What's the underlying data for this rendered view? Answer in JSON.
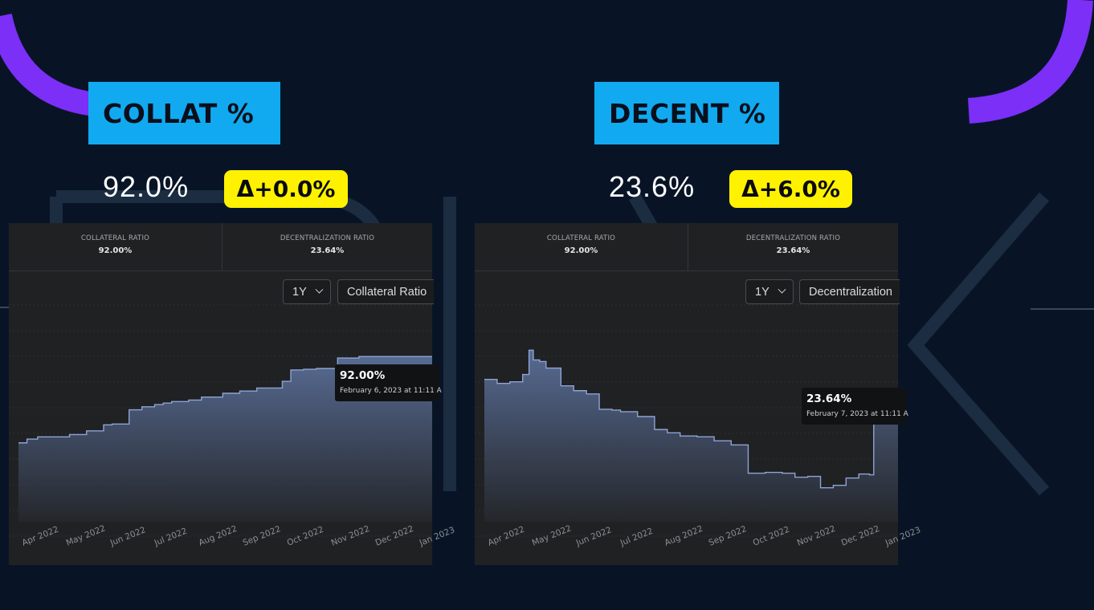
{
  "left": {
    "label": "COLLAT %",
    "value": "92.0%",
    "delta": "Δ+0.0%",
    "stats": [
      {
        "title": "COLLATERAL RATIO",
        "value": "92.00%"
      },
      {
        "title": "DECENTRALIZATION RATIO",
        "value": "23.64%"
      }
    ],
    "period": "1Y",
    "metric": "Collateral Ratio",
    "tooltip": {
      "value": "92.00%",
      "date": "February 6, 2023 at 11:11 A"
    }
  },
  "right": {
    "label": "DECENT %",
    "value": "23.6%",
    "delta": "Δ+6.0%",
    "stats": [
      {
        "title": "COLLATERAL RATIO",
        "value": "92.00%"
      },
      {
        "title": "DECENTRALIZATION RATIO",
        "value": "23.64%"
      }
    ],
    "period": "1Y",
    "metric": "Decentralization",
    "tooltip": {
      "value": "23.64%",
      "date": "February 7, 2023 at 11:11 A"
    }
  },
  "colors": {
    "background": "#081426",
    "label_box": "#11aaf0",
    "delta_badge": "#fff200",
    "accent_arc": "#7b2ff7",
    "line": "#8ea4d6",
    "panel": "#202123"
  },
  "chart_data": [
    {
      "type": "area",
      "x_ticks": [
        "Apr 2022",
        "May 2022",
        "Jun 2022",
        "Jul 2022",
        "Aug 2022",
        "Sep 2022",
        "Oct 2022",
        "Nov 2022",
        "Dec 2022",
        "Jan 2023"
      ],
      "x": [
        0,
        0.2,
        0.45,
        0.8,
        1.2,
        1.6,
        2.0,
        2.2,
        2.6,
        2.9,
        3.2,
        3.4,
        3.6,
        4.0,
        4.3,
        4.5,
        4.8,
        5.2,
        5.6,
        5.9,
        6.2,
        6.4,
        6.7,
        7.0,
        7.5,
        8.0,
        8.5,
        9.0,
        9.4
      ],
      "y": [
        80.5,
        81.0,
        81.3,
        81.3,
        81.6,
        82.1,
        82.9,
        83.0,
        84.9,
        85.3,
        85.6,
        85.8,
        86.0,
        86.2,
        86.6,
        86.6,
        87.1,
        87.4,
        87.8,
        87.8,
        88.7,
        90.2,
        90.3,
        90.4,
        91.8,
        92.0,
        92.0,
        92.0,
        92.0
      ],
      "ylim": [
        70,
        98
      ],
      "grid": true,
      "tooltip_value": "92.00%"
    },
    {
      "type": "area",
      "x_ticks": [
        "Apr 2022",
        "May 2022",
        "Jun 2022",
        "Jul 2022",
        "Aug 2022",
        "Sep 2022",
        "Oct 2022",
        "Nov 2022",
        "Dec 2022",
        "Jan 2023"
      ],
      "x": [
        0,
        0.3,
        0.6,
        0.9,
        1.05,
        1.15,
        1.3,
        1.45,
        1.8,
        2.1,
        2.4,
        2.7,
        3.0,
        3.2,
        3.6,
        4.0,
        4.3,
        4.6,
        5.0,
        5.4,
        5.8,
        6.2,
        6.6,
        7.0,
        7.3,
        7.6,
        7.9,
        8.2,
        8.5,
        8.8,
        9.05,
        9.15
      ],
      "y": [
        27.6,
        27.1,
        27.3,
        28.2,
        31.2,
        30.0,
        29.8,
        29.0,
        26.8,
        26.2,
        25.8,
        23.9,
        23.8,
        23.6,
        23.0,
        21.4,
        21.0,
        20.6,
        20.5,
        20.0,
        19.5,
        16.0,
        16.1,
        16.0,
        15.5,
        15.6,
        14.2,
        14.5,
        15.4,
        15.9,
        15.8,
        23.64
      ],
      "ylim": [
        10,
        36
      ],
      "grid": true,
      "tooltip_value": "23.64%"
    }
  ]
}
